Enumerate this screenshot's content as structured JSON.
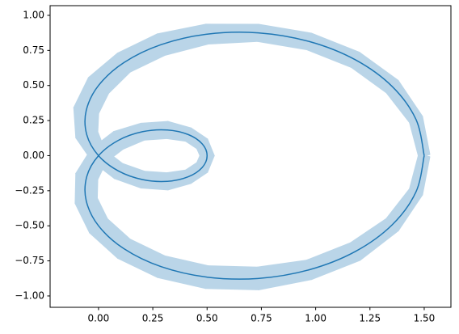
{
  "chart_data": {
    "type": "line",
    "color": "#1f77b4",
    "x": [
      1.5,
      1.4622,
      1.3529,
      1.183,
      0.9698,
      0.7346,
      0.5,
      0.288,
      0.117,
      0,
      -0.0567,
      -0.054,
      0,
      0.0918,
      0.2038,
      0.317,
      0.4132,
      0.4774,
      0.5,
      0.4774,
      0.4132,
      0.317,
      0.2038,
      0.0918,
      0,
      -0.054,
      -0.0567,
      0,
      0.117,
      0.288,
      0.5,
      0.7346,
      0.9698,
      1.183,
      1.3529,
      1.4622,
      1.5
    ],
    "values": [
      0,
      0.2578,
      0.4924,
      0.683,
      0.8138,
      0.8754,
      0.866,
      0.7912,
      0.6634,
      0.5,
      0.3214,
      0.1485,
      0,
      -0.1094,
      -0.171,
      -0.183,
      -0.1504,
      -0.0842,
      0,
      0.0842,
      0.1504,
      0.183,
      0.171,
      0.1094,
      0,
      -0.1485,
      -0.3214,
      -0.5,
      -0.6634,
      -0.7912,
      -0.866,
      -0.8754,
      -0.8138,
      -0.683,
      -0.4924,
      -0.2578,
      0
    ],
    "errors": [
      0.04,
      0.05,
      0.06,
      0.06,
      0.06,
      0.06,
      0.07,
      0.08,
      0.08,
      0.09,
      0.09,
      0.08,
      0.06,
      0.06,
      0.06,
      0.06,
      0.05,
      0.05,
      0.05,
      0.05,
      0.05,
      0.06,
      0.06,
      0.07,
      0.07,
      0.08,
      0.08,
      0.08,
      0.08,
      0.08,
      0.08,
      0.08,
      0.07,
      0.07,
      0.06,
      0.05,
      0.04
    ],
    "xlim": [
      -0.223,
      1.623
    ],
    "ylim": [
      -1.081,
      1.069
    ],
    "xticks": [
      {
        "value": 0,
        "label": "0.00"
      },
      {
        "value": 0.25,
        "label": "0.25"
      },
      {
        "value": 0.5,
        "label": "0.50"
      },
      {
        "value": 0.75,
        "label": "0.75"
      },
      {
        "value": 1,
        "label": "1.00"
      },
      {
        "value": 1.25,
        "label": "1.25"
      },
      {
        "value": 1.5,
        "label": "1.50"
      }
    ],
    "yticks": [
      {
        "value": -1,
        "label": "−1.00"
      },
      {
        "value": -0.75,
        "label": "−0.75"
      },
      {
        "value": -0.5,
        "label": "−0.50"
      },
      {
        "value": -0.25,
        "label": "−0.25"
      },
      {
        "value": 0,
        "label": "0.00"
      },
      {
        "value": 0.25,
        "label": "0.25"
      },
      {
        "value": 0.5,
        "label": "0.50"
      },
      {
        "value": 0.75,
        "label": "0.75"
      },
      {
        "value": 1,
        "label": "1.00"
      }
    ]
  }
}
